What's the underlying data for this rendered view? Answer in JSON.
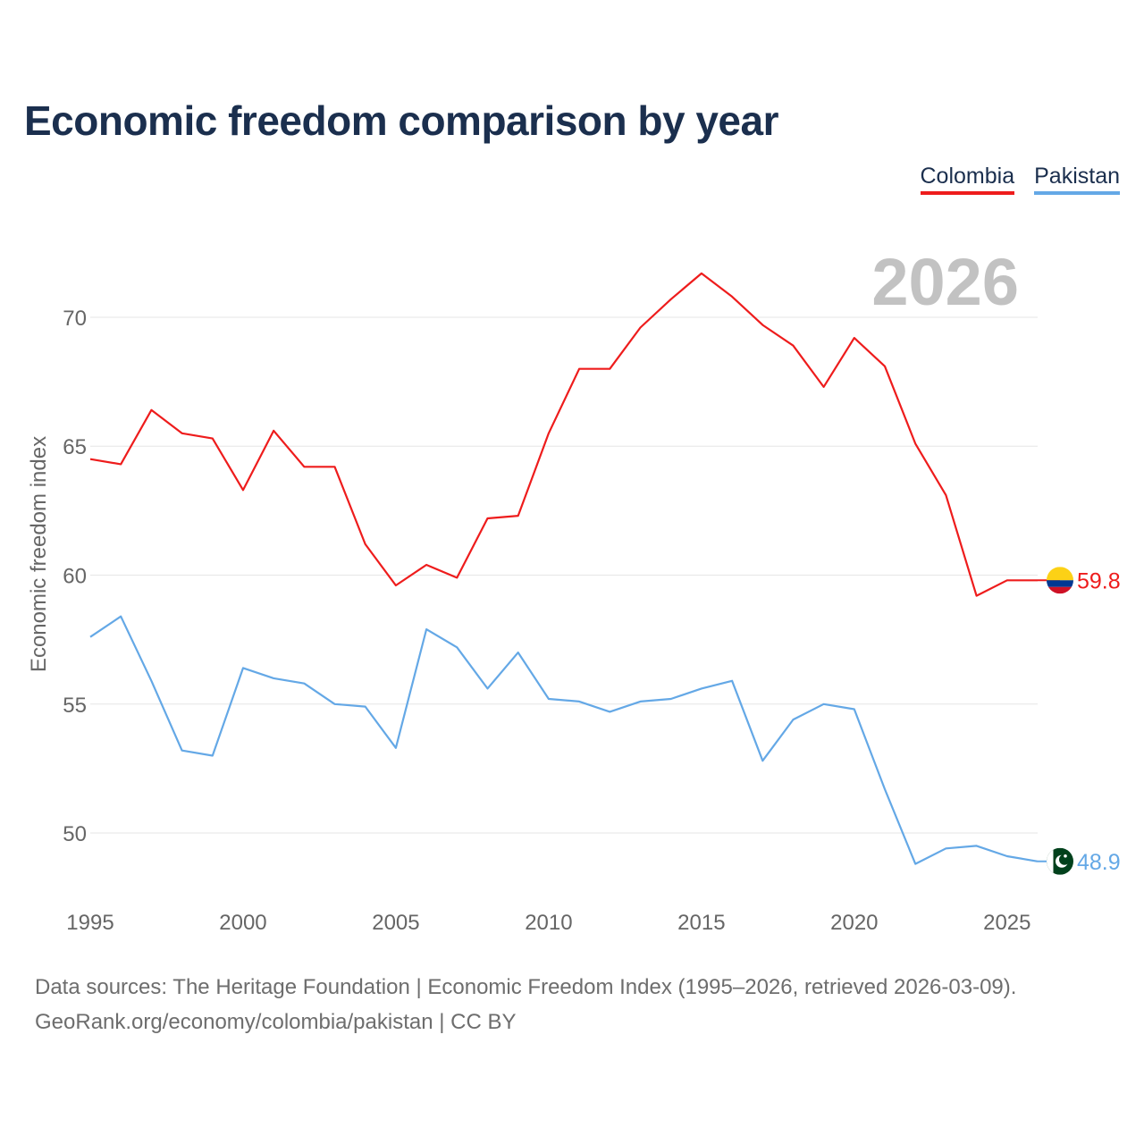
{
  "chart_data": {
    "type": "line",
    "title": "Economic freedom comparison by year",
    "xlabel": "",
    "ylabel": "Economic freedom index",
    "year_watermark": "2026",
    "x": [
      1995,
      1996,
      1997,
      1998,
      1999,
      2000,
      2001,
      2002,
      2003,
      2004,
      2005,
      2006,
      2007,
      2008,
      2009,
      2010,
      2011,
      2012,
      2013,
      2014,
      2015,
      2016,
      2017,
      2018,
      2019,
      2020,
      2021,
      2022,
      2023,
      2024,
      2025,
      2026
    ],
    "xlim": [
      1995,
      2026
    ],
    "ylim": [
      46.5,
      73.5
    ],
    "x_ticks": [
      1995,
      2000,
      2005,
      2010,
      2015,
      2020,
      2025
    ],
    "y_ticks": [
      50,
      55,
      60,
      65,
      70
    ],
    "grid": true,
    "legend_position": "top-right",
    "series": [
      {
        "name": "Colombia",
        "color": "#ee1c1c",
        "flag": "colombia-flag",
        "end_label": "59.8",
        "values": [
          64.5,
          64.3,
          66.4,
          65.5,
          65.3,
          63.3,
          65.6,
          64.2,
          64.2,
          61.2,
          59.6,
          60.4,
          59.9,
          62.2,
          62.3,
          65.5,
          68.0,
          68.0,
          69.6,
          70.7,
          71.7,
          70.8,
          69.7,
          68.9,
          67.3,
          69.2,
          68.1,
          65.1,
          63.1,
          59.2,
          59.8,
          59.8
        ]
      },
      {
        "name": "Pakistan",
        "color": "#64a8e6",
        "flag": "pakistan-flag",
        "end_label": "48.9",
        "values": [
          57.6,
          58.4,
          55.9,
          53.2,
          53.0,
          56.4,
          56.0,
          55.8,
          55.0,
          54.9,
          53.3,
          57.9,
          57.2,
          55.6,
          57.0,
          55.2,
          55.1,
          54.7,
          55.1,
          55.2,
          55.6,
          55.9,
          52.8,
          54.4,
          55.0,
          54.8,
          51.7,
          48.8,
          49.4,
          49.5,
          49.1,
          48.9
        ]
      }
    ]
  },
  "footer": {
    "sources": "Data sources: The Heritage Foundation | Economic Freedom Index (1995–2026, retrieved 2026-03-09).",
    "link": "GeoRank.org/economy/colombia/pakistan",
    "license": " | CC BY"
  }
}
